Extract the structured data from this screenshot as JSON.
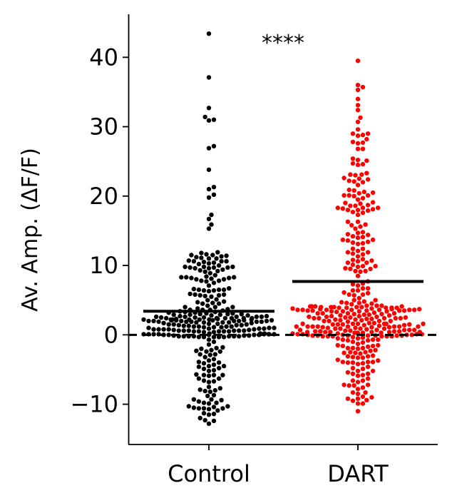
{
  "chart_data": {
    "type": "scatter",
    "subtype": "swarm",
    "title": "",
    "xlabel": "",
    "ylabel": "Av. Amp. (ΔF/F)",
    "ylim": [
      -15.8,
      46.2
    ],
    "yticks": [
      -10,
      0,
      10,
      20,
      30,
      40
    ],
    "ytick_labels": [
      "−10",
      "0",
      "10",
      "20",
      "30",
      "40"
    ],
    "categories": [
      "Control",
      "DART"
    ],
    "annotation": "****",
    "zero_line": {
      "y": 0,
      "style": "dashed",
      "color": "#000000"
    },
    "series": [
      {
        "category": "Control",
        "color": "#000000",
        "mean": 3.4,
        "n": 300,
        "max": 43.4,
        "min": -12.8,
        "outliers_high": [
          43.4,
          37.1,
          32.7,
          31.4,
          31.0,
          30.9,
          27.2,
          26.9,
          23.8,
          21.3,
          21.0,
          20.2,
          19.8,
          17.3,
          16.7,
          15.9,
          15.3
        ]
      },
      {
        "category": "DART",
        "color": "#ff0000",
        "mean": 7.7,
        "n": 360,
        "max": 39.5,
        "min": -11.0,
        "outliers_high": [
          39.5,
          36.0,
          35.7,
          35.3,
          34.0,
          33.1,
          32.4,
          31.3,
          30.7,
          29.6
        ]
      }
    ],
    "grid": false,
    "legend": "none"
  }
}
